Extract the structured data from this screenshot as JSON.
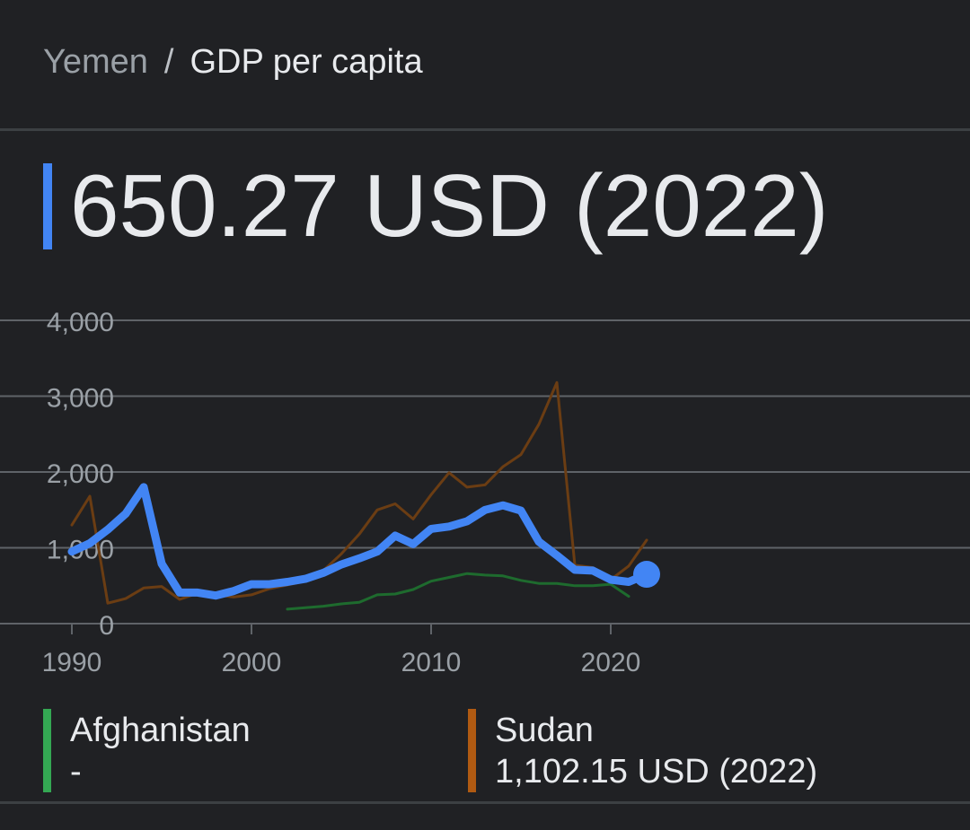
{
  "breadcrumb": {
    "parent": "Yemen",
    "separator": "/",
    "current": "GDP per capita"
  },
  "headline": {
    "value": "650.27 USD (2022)",
    "accent_color": "#4285f4"
  },
  "legend": [
    {
      "name": "Afghanistan",
      "value": "-",
      "color": "#34a853"
    },
    {
      "name": "Sudan",
      "value": "1,102.15 USD (2022)",
      "color": "#b05a12"
    }
  ],
  "chart_data": {
    "type": "line",
    "ylim": [
      0,
      4000
    ],
    "xlim": [
      1986,
      2040
    ],
    "yticks": [
      0,
      1000,
      2000,
      3000,
      4000
    ],
    "ytick_labels": [
      "0",
      "1,000",
      "2,000",
      "3,000",
      "4,000"
    ],
    "xticks": [
      1990,
      2000,
      2010,
      2020
    ],
    "xtick_labels": [
      "1990",
      "2000",
      "2010",
      "2020"
    ],
    "grid": true,
    "series": [
      {
        "name": "Afghanistan",
        "color": "#1e6b2e",
        "width": 3,
        "x": [
          2002,
          2003,
          2004,
          2005,
          2006,
          2007,
          2008,
          2009,
          2010,
          2011,
          2012,
          2013,
          2014,
          2015,
          2016,
          2017,
          2018,
          2019,
          2020,
          2021
        ],
        "y": [
          190,
          210,
          230,
          260,
          280,
          380,
          390,
          450,
          560,
          610,
          660,
          640,
          630,
          570,
          530,
          530,
          500,
          500,
          520,
          360
        ]
      },
      {
        "name": "Sudan",
        "color": "#6b3d13",
        "width": 3,
        "x": [
          1990,
          1991,
          1992,
          1993,
          1994,
          1995,
          1996,
          1997,
          1998,
          1999,
          2000,
          2001,
          2002,
          2003,
          2004,
          2005,
          2006,
          2007,
          2008,
          2009,
          2010,
          2011,
          2012,
          2013,
          2014,
          2015,
          2016,
          2017,
          2018,
          2019,
          2020,
          2021,
          2022
        ],
        "y": [
          1300,
          1680,
          270,
          330,
          470,
          490,
          320,
          400,
          380,
          350,
          380,
          460,
          510,
          560,
          700,
          920,
          1180,
          1500,
          1580,
          1380,
          1700,
          1990,
          1800,
          1830,
          2070,
          2230,
          2630,
          3180,
          770,
          740,
          580,
          760,
          1102.15
        ]
      },
      {
        "name": "Yemen",
        "color": "#4285f4",
        "width": 9,
        "x": [
          1990,
          1991,
          1992,
          1993,
          1994,
          1995,
          1996,
          1997,
          1998,
          1999,
          2000,
          2001,
          2002,
          2003,
          2004,
          2005,
          2006,
          2007,
          2008,
          2009,
          2010,
          2011,
          2012,
          2013,
          2014,
          2015,
          2016,
          2017,
          2018,
          2019,
          2020,
          2021,
          2022
        ],
        "y": [
          950,
          1060,
          1240,
          1450,
          1800,
          790,
          410,
          410,
          370,
          430,
          520,
          520,
          550,
          590,
          670,
          780,
          860,
          950,
          1160,
          1050,
          1250,
          1280,
          1350,
          1500,
          1560,
          1490,
          1080,
          900,
          710,
          700,
          580,
          550,
          650.27
        ]
      }
    ],
    "highlight": {
      "series": "Yemen",
      "x": 2022,
      "y": 650.27
    }
  }
}
